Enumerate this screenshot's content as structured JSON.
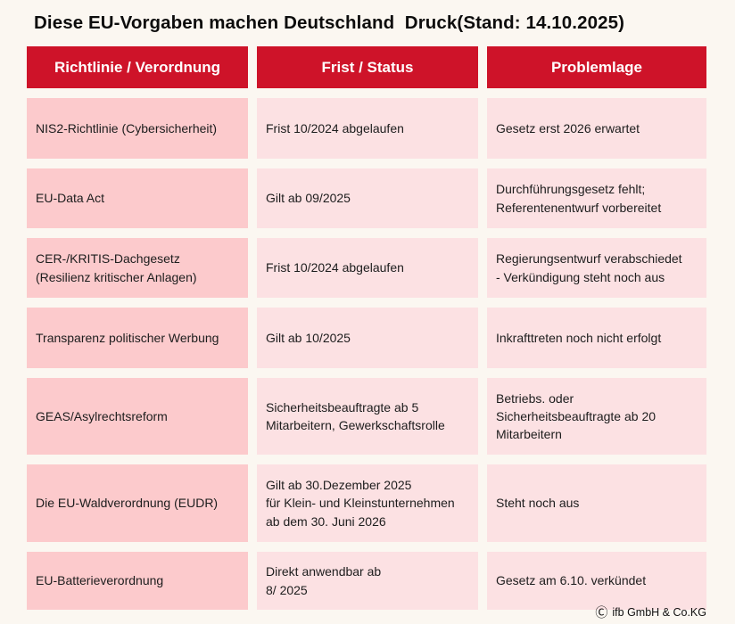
{
  "title": "Diese EU-Vorgaben machen Deutschland  Druck(Stand: 14.10.2025)",
  "colors": {
    "page_bg": "#fbf7f1",
    "header_bg": "#ce1329",
    "header_text": "#ffffff",
    "col1_bg": "#fccacc",
    "col23_bg": "#fce1e3",
    "body_text": "#1d1d1d",
    "title_text": "#0d0d0d"
  },
  "chart_data": {
    "type": "table",
    "title": "Diese EU-Vorgaben machen Deutschland  Druck(Stand: 14.10.2025)",
    "columns": [
      "Richtlinie / Verordnung",
      "Frist / Status",
      "Problemlage"
    ],
    "rows": [
      [
        "NIS2-Richtlinie (Cybersicherheit)",
        "Frist 10/2024 abgelaufen",
        "Gesetz erst 2026 erwartet"
      ],
      [
        "EU-Data Act",
        "Gilt ab 09/2025",
        "Durchführungsgesetz fehlt;\nReferentenentwurf vorbereitet"
      ],
      [
        "CER-/KRITIS-Dachgesetz\n(Resilienz kritischer Anlagen)",
        "Frist 10/2024 abgelaufen",
        "Regierungsentwurf verabschiedet\n- Verkündigung steht noch aus"
      ],
      [
        "Transparenz politischer Werbung",
        "Gilt ab 10/2025",
        "Inkrafttreten noch nicht erfolgt"
      ],
      [
        "GEAS/Asylrechtsreform",
        "Sicherheitsbeauftragte ab 5\nMitarbeitern, Gewerkschaftsrolle",
        "Betriebs. oder\nSicherheitsbeauftragte ab 20\nMitarbeitern"
      ],
      [
        "Die EU-Waldverordnung (EUDR)",
        "Gilt ab 30.Dezember 2025\nfür Klein- und Kleinstunternehmen\nab dem 30. Juni 2026",
        "Steht noch aus"
      ],
      [
        "EU-Batterieverordnung",
        "Direkt anwendbar ab\n8/ 2025",
        "Gesetz am 6.10. verkündet"
      ]
    ]
  },
  "footer": {
    "symbol": "Ⓒ",
    "text": "ifb GmbH & Co.KG"
  }
}
